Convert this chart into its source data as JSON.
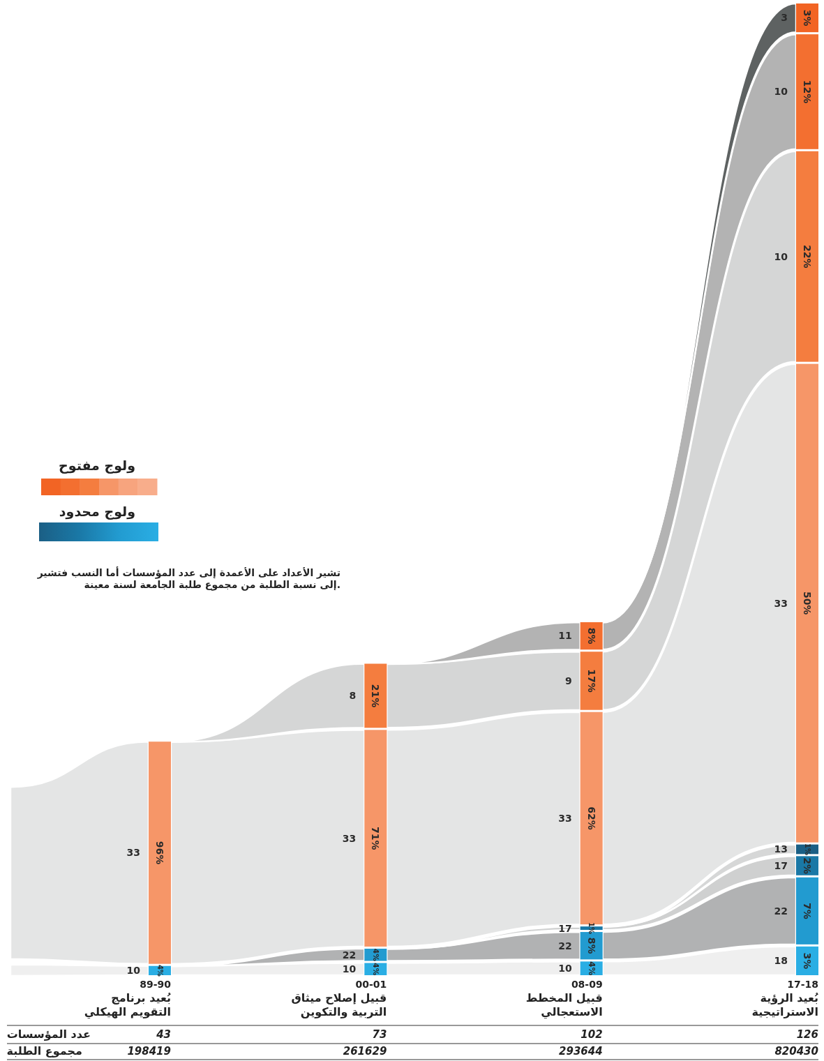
{
  "chart_data": {
    "type": "other",
    "categories": [
      "89-90\nبُعيد برنامج\nالتقويم الهيكلي",
      "00-01\nقبيل إصلاح ميثاق\nالتربية والتكوين",
      "08-09\nقبيل المخطط\nالاستعجالي",
      "17-18\nبُعيد الرؤية\nالاستراتيجية"
    ],
    "series": [
      {
        "color": "#2aaee4",
        "values": [
          4,
          4,
          4,
          3
        ],
        "value_labels": [
          "4%",
          "4%",
          "4%",
          "3%"
        ]
      },
      {
        "color": "#229bd0",
        "values": [
          null,
          4,
          8,
          7
        ],
        "value_labels": [
          null,
          "4%",
          "8%",
          "7%"
        ]
      },
      {
        "color": "#1a78a6",
        "values": [
          null,
          null,
          1,
          2
        ],
        "value_labels": [
          null,
          null,
          "1%",
          "2%"
        ]
      },
      {
        "color": "#1b5f85",
        "values": [
          null,
          null,
          null,
          1
        ],
        "value_labels": [
          null,
          null,
          null,
          "1%"
        ]
      },
      {
        "color": "#f69668",
        "values": [
          96,
          71,
          62,
          50
        ],
        "value_labels": [
          "96%",
          "71%",
          "62%",
          "50%"
        ]
      },
      {
        "color": "#f47d3f",
        "values": [
          null,
          21,
          17,
          22
        ],
        "value_labels": [
          null,
          "21%",
          "17%",
          "22%"
        ]
      },
      {
        "color": "#f36f30",
        "values": [
          null,
          null,
          8,
          12
        ],
        "value_labels": [
          null,
          null,
          "8%",
          "12%"
        ]
      },
      {
        "color": "#f26424",
        "values": [
          null,
          null,
          null,
          3
        ],
        "value_labels": [
          null,
          null,
          null,
          "3%"
        ]
      }
    ],
    "totals": [
      "198419",
      "261629",
      "293644",
      "820430"
    ],
    "annotations": [
      "ولوج مفتوح",
      "ولوج محدود",
      "تشير الأعداد على الأعمدة إلى عدد المؤسسات أما النسب فتشير\nإلى نسبة الطلبة من مجموع طلبة الجامعة لسنة معينة.",
      "عدد المؤسسات",
      "مجموع الطلبة",
      {
        "text": "43",
        "x": "89-90\nبُعيد برنامج\nالتقويم الهيكلي"
      },
      {
        "text": "73",
        "x": "00-01\nقبيل إصلاح ميثاق\nالتربية والتكوين"
      },
      {
        "text": "102",
        "x": "08-09\nقبيل المخطط\nالاستعجالي"
      },
      {
        "text": "126",
        "x": "17-18\nبُعيد الرؤية\nالاستراتيجية"
      },
      {
        "text": "10",
        "x": "89-90\nبُعيد برنامج\nالتقويم الهيكلي"
      },
      {
        "text": "33",
        "x": "89-90\nبُعيد برنامج\nالتقويم الهيكلي"
      },
      {
        "text": "10",
        "x": "00-01\nقبيل إصلاح ميثاق\nالتربية والتكوين"
      },
      {
        "text": "22",
        "x": "00-01\nقبيل إصلاح ميثاق\nالتربية والتكوين"
      },
      {
        "text": "33",
        "x": "00-01\nقبيل إصلاح ميثاق\nالتربية والتكوين"
      },
      {
        "text": "8",
        "x": "00-01\nقبيل إصلاح ميثاق\nالتربية والتكوين"
      },
      {
        "text": "10",
        "x": "08-09\nقبيل المخطط\nالاستعجالي"
      },
      {
        "text": "22",
        "x": "08-09\nقبيل المخطط\nالاستعجالي"
      },
      {
        "text": "17",
        "x": "08-09\nقبيل المخطط\nالاستعجالي"
      },
      {
        "text": "33",
        "x": "08-09\nقبيل المخطط\nالاستعجالي"
      },
      {
        "text": "9",
        "x": "08-09\nقبيل المخطط\nالاستعجالي"
      },
      {
        "text": "11",
        "x": "08-09\nقبيل المخطط\nالاستعجالي"
      },
      {
        "text": "18",
        "x": "17-18\nبُعيد الرؤية\nالاستراتيجية"
      },
      {
        "text": "22",
        "x": "17-18\nبُعيد الرؤية\nالاستراتيجية"
      },
      {
        "text": "17",
        "x": "17-18\nبُعيد الرؤية\nالاستراتيجية"
      },
      {
        "text": "13",
        "x": "17-18\nبُعيد الرؤية\nالاستراتيجية"
      },
      {
        "text": "33",
        "x": "17-18\nبُعيد الرؤية\nالاستراتيجية"
      },
      {
        "text": "10",
        "x": "17-18\nبُعيد الرؤية\nالاستراتيجية"
      },
      {
        "text": "10",
        "x": "17-18\nبُعيد الرؤية\nالاستراتيجية"
      },
      {
        "text": "3",
        "x": "17-18\nبُعيد الرؤية\nالاستراتيجية"
      }
    ]
  }
}
